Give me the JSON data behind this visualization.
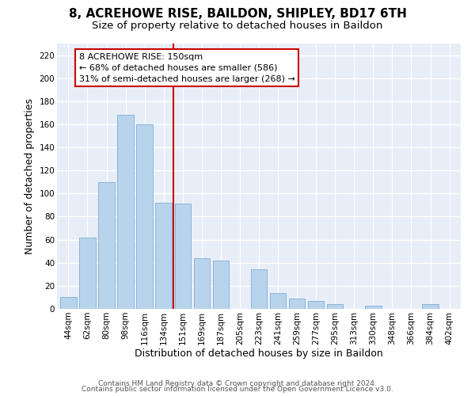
{
  "title": "8, ACREHOWE RISE, BAILDON, SHIPLEY, BD17 6TH",
  "subtitle": "Size of property relative to detached houses in Baildon",
  "xlabel": "Distribution of detached houses by size in Baildon",
  "ylabel": "Number of detached properties",
  "footer_lines": [
    "Contains HM Land Registry data © Crown copyright and database right 2024.",
    "Contains public sector information licensed under the Open Government Licence v3.0."
  ],
  "categories": [
    "44sqm",
    "62sqm",
    "80sqm",
    "98sqm",
    "116sqm",
    "134sqm",
    "151sqm",
    "169sqm",
    "187sqm",
    "205sqm",
    "223sqm",
    "241sqm",
    "259sqm",
    "277sqm",
    "295sqm",
    "313sqm",
    "330sqm",
    "348sqm",
    "366sqm",
    "384sqm",
    "402sqm"
  ],
  "values": [
    10,
    62,
    110,
    168,
    160,
    92,
    91,
    44,
    42,
    0,
    34,
    14,
    9,
    7,
    4,
    0,
    3,
    0,
    0,
    4,
    0
  ],
  "bar_color": "#b8d4ec",
  "bar_edge_color": "#8ab4d8",
  "vline_color": "#cc0000",
  "annotation_text": "8 ACREHOWE RISE: 150sqm\n← 68% of detached houses are smaller (586)\n31% of semi-detached houses are larger (268) →",
  "annotation_box_color": "#ffffff",
  "annotation_box_edge_color": "#cc0000",
  "ylim": [
    0,
    230
  ],
  "yticks": [
    0,
    20,
    40,
    60,
    80,
    100,
    120,
    140,
    160,
    180,
    200,
    220
  ],
  "background_color": "#ffffff",
  "plot_background_color": "#e8eef8",
  "title_fontsize": 11,
  "subtitle_fontsize": 9.5,
  "tick_fontsize": 7.5,
  "label_fontsize": 9,
  "footer_fontsize": 6.5
}
